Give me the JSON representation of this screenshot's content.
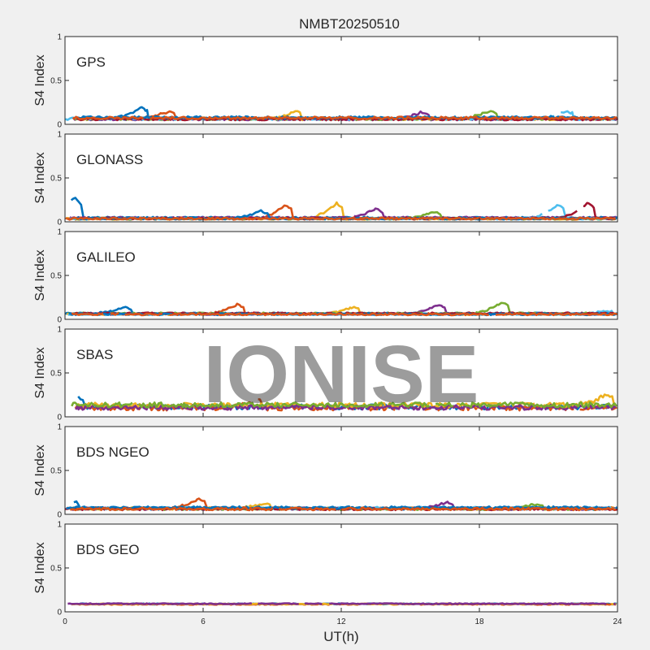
{
  "title": "NMBT20250510",
  "watermark": "IONISE",
  "xlabel": "UT(h)",
  "xlim": [
    0,
    24
  ],
  "xticks": [
    0,
    6,
    12,
    18,
    24
  ],
  "colors": [
    "#0072BD",
    "#D95319",
    "#EDB120",
    "#7E2F8E",
    "#77AC30",
    "#4DBEEE",
    "#A2142F"
  ],
  "chart_data": [
    {
      "type": "scatter",
      "panel_label": "GPS",
      "ylabel": "S4 Index",
      "ylim": [
        0,
        1
      ],
      "yticks": [
        0,
        0.5,
        1
      ],
      "baseline": 0.07,
      "spread": 0.02,
      "series_count": 9,
      "bumps": [
        {
          "x": 3.3,
          "y": 0.2
        },
        {
          "x": 4.5,
          "y": 0.15
        },
        {
          "x": 10.0,
          "y": 0.16
        },
        {
          "x": 15.5,
          "y": 0.15
        },
        {
          "x": 18.5,
          "y": 0.17
        },
        {
          "x": 21.8,
          "y": 0.16
        }
      ]
    },
    {
      "type": "scatter",
      "panel_label": "GLONASS",
      "ylabel": "S4 Index",
      "ylim": [
        0,
        1
      ],
      "yticks": [
        0,
        0.5,
        1
      ],
      "baseline": 0.04,
      "spread": 0.015,
      "series_count": 9,
      "bumps": [
        {
          "x": 0.4,
          "y": 0.28
        },
        {
          "x": 9.6,
          "y": 0.2
        },
        {
          "x": 11.8,
          "y": 0.22
        },
        {
          "x": 13.5,
          "y": 0.14
        },
        {
          "x": 16.0,
          "y": 0.12
        },
        {
          "x": 21.4,
          "y": 0.2
        },
        {
          "x": 22.7,
          "y": 0.22
        },
        {
          "x": 8.5,
          "y": 0.13
        }
      ]
    },
    {
      "type": "scatter",
      "panel_label": "GALILEO",
      "ylabel": "S4 Index",
      "ylim": [
        0,
        1
      ],
      "yticks": [
        0,
        0.5,
        1
      ],
      "baseline": 0.06,
      "spread": 0.015,
      "series_count": 9,
      "bumps": [
        {
          "x": 2.6,
          "y": 0.14
        },
        {
          "x": 7.5,
          "y": 0.17
        },
        {
          "x": 12.5,
          "y": 0.14
        },
        {
          "x": 16.2,
          "y": 0.17
        },
        {
          "x": 19.0,
          "y": 0.19
        },
        {
          "x": 23.5,
          "y": 0.1
        }
      ]
    },
    {
      "type": "scatter",
      "panel_label": "SBAS",
      "ylabel": "S4 Index",
      "ylim": [
        0,
        1
      ],
      "yticks": [
        0,
        0.5,
        1
      ],
      "baseline": 0.12,
      "spread": 0.04,
      "series_count": 5,
      "bumps": [
        {
          "x": 0.5,
          "y": 0.24
        },
        {
          "x": 8.3,
          "y": 0.21
        },
        {
          "x": 23.5,
          "y": 0.24
        }
      ]
    },
    {
      "type": "scatter",
      "panel_label": "BDS NGEO",
      "ylabel": "S4 Index",
      "ylim": [
        0,
        1
      ],
      "yticks": [
        0,
        0.5,
        1
      ],
      "baseline": 0.07,
      "spread": 0.02,
      "series_count": 9,
      "bumps": [
        {
          "x": 0.3,
          "y": 0.16
        },
        {
          "x": 5.8,
          "y": 0.18
        },
        {
          "x": 8.6,
          "y": 0.13
        },
        {
          "x": 16.6,
          "y": 0.15
        },
        {
          "x": 20.5,
          "y": 0.13
        }
      ]
    },
    {
      "type": "scatter",
      "panel_label": "BDS GEO",
      "ylabel": "S4 Index",
      "ylim": [
        0,
        1
      ],
      "yticks": [
        0,
        0.5,
        1
      ],
      "baseline": 0.09,
      "spread": 0.008,
      "series_count": 4,
      "bumps": []
    }
  ]
}
